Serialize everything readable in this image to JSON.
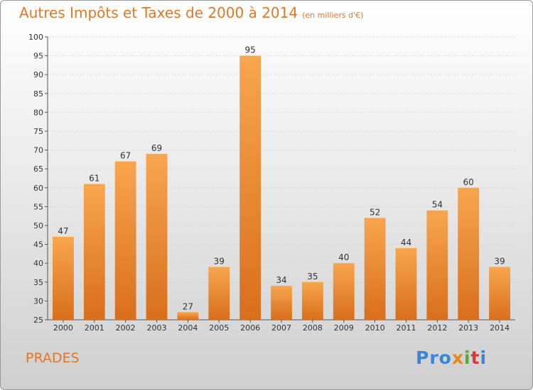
{
  "title": "Autres Impôts et Taxes de 2000 à 2014",
  "unit_note": "(en milliers d'€)",
  "place": "PRADES",
  "logo": {
    "p1": "Pro",
    "p2": "x",
    "p3": "i",
    "p4": "t",
    "p5": "i"
  },
  "colors": {
    "bar_top": "#f7a64e",
    "bar_bottom": "#d96e1c",
    "text_accent": "#e07828"
  },
  "chart_data": {
    "type": "bar",
    "title": "Autres Impôts et Taxes de 2000 à 2014",
    "subtitle": "(en milliers d'€)",
    "xlabel": "",
    "ylabel": "",
    "categories": [
      "2000",
      "2001",
      "2002",
      "2003",
      "2004",
      "2005",
      "2006",
      "2007",
      "2008",
      "2009",
      "2010",
      "2011",
      "2012",
      "2013",
      "2014"
    ],
    "values": [
      47,
      61,
      67,
      69,
      27,
      39,
      95,
      34,
      35,
      40,
      52,
      44,
      54,
      60,
      39
    ],
    "ylim": [
      25,
      100
    ],
    "yticks": [
      25,
      30,
      35,
      40,
      45,
      50,
      55,
      60,
      65,
      70,
      75,
      80,
      85,
      90,
      95,
      100
    ],
    "grid": true
  }
}
